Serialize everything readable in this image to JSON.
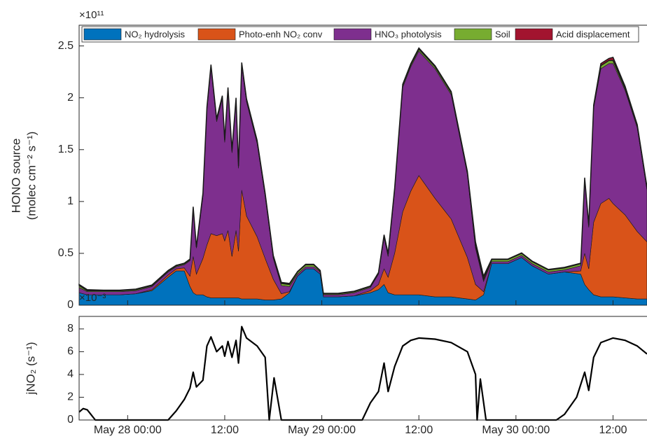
{
  "chart_data": [
    {
      "type": "area",
      "stacked": true,
      "legend": "top",
      "y_label": [
        "HONO source",
        "(molec cm⁻² s⁻¹)"
      ],
      "y_multiplier": "×10¹¹",
      "x": [
        "May 27 18:00",
        "May 27 19:00",
        "May 27 21:00",
        "May 27 23:00",
        "May 28 01:00",
        "May 28 03:00",
        "May 28 05:00",
        "May 28 06:00",
        "May 28 07:00",
        "May 28 07:42",
        "May 28 08:06",
        "May 28 08:30",
        "May 28 09:18",
        "May 28 09:48",
        "May 28 10:18",
        "May 28 11:00",
        "May 28 11:42",
        "May 28 12:00",
        "May 28 12:24",
        "May 28 12:54",
        "May 28 13:24",
        "May 28 13:42",
        "May 28 14:06",
        "May 28 14:42",
        "May 28 16:00",
        "May 28 17:00",
        "May 28 18:00",
        "May 28 19:00",
        "May 28 20:00",
        "May 28 21:00",
        "May 28 22:00",
        "May 28 23:00",
        "May 28 23:48",
        "May 29 00:12",
        "May 29 02:00",
        "May 29 04:00",
        "May 29 06:00",
        "May 29 07:00",
        "May 29 07:42",
        "May 29 08:12",
        "May 29 09:00",
        "May 29 10:00",
        "May 29 11:00",
        "May 29 12:00",
        "May 29 14:00",
        "May 29 16:00",
        "May 29 18:00",
        "May 29 19:00",
        "May 29 20:00",
        "May 29 21:00",
        "May 29 23:00",
        "May 30 00:42",
        "May 30 02:00",
        "May 30 04:00",
        "May 30 06:00",
        "May 30 08:00",
        "May 30 08:30",
        "May 30 09:00",
        "May 30 09:36",
        "May 30 10:30",
        "May 30 11:30",
        "May 30 12:00",
        "May 30 13:30",
        "May 30 15:00",
        "May 30 16:12"
      ],
      "series": [
        {
          "name": "NO₂ hydrolysis",
          "color": "#0072bd",
          "values": [
            0.12,
            0.1,
            0.1,
            0.1,
            0.11,
            0.14,
            0.27,
            0.33,
            0.33,
            0.18,
            0.12,
            0.1,
            0.1,
            0.08,
            0.07,
            0.07,
            0.07,
            0.07,
            0.07,
            0.07,
            0.07,
            0.07,
            0.06,
            0.06,
            0.06,
            0.05,
            0.05,
            0.06,
            0.12,
            0.28,
            0.35,
            0.35,
            0.3,
            0.08,
            0.08,
            0.09,
            0.12,
            0.15,
            0.2,
            0.12,
            0.1,
            0.1,
            0.1,
            0.1,
            0.08,
            0.08,
            0.06,
            0.05,
            0.1,
            0.4,
            0.4,
            0.46,
            0.38,
            0.3,
            0.32,
            0.3,
            0.2,
            0.15,
            0.1,
            0.08,
            0.08,
            0.08,
            0.07,
            0.06,
            0.06
          ]
        },
        {
          "name": "Photo-enh NO₂ conv",
          "color": "#d95319",
          "values": [
            0,
            0,
            0,
            0,
            0,
            0.01,
            0.02,
            0.02,
            0.03,
            0.1,
            0.35,
            0.2,
            0.35,
            0.5,
            0.62,
            0.6,
            0.62,
            0.55,
            0.65,
            0.4,
            0.65,
            0.45,
            1.05,
            0.8,
            0.6,
            0.4,
            0.2,
            0.05,
            0.01,
            0,
            0,
            0,
            0,
            0,
            0,
            0,
            0.02,
            0.05,
            0.15,
            0.15,
            0.4,
            0.8,
            1.0,
            1.15,
            0.95,
            0.75,
            0.4,
            0.15,
            0.03,
            0,
            0,
            0,
            0,
            0,
            0,
            0.03,
            0.3,
            0.2,
            0.7,
            0.9,
            0.95,
            0.9,
            0.8,
            0.65,
            0.55
          ]
        },
        {
          "name": "HNO₃ photolysis",
          "color": "#7e2f8e",
          "values": [
            0.05,
            0.03,
            0.03,
            0.03,
            0.03,
            0.03,
            0.03,
            0.02,
            0.03,
            0.15,
            0.45,
            0.25,
            0.6,
            1.3,
            1.6,
            1.1,
            1.3,
            0.95,
            1.35,
            1.0,
            1.25,
            0.8,
            1.2,
            1.1,
            0.9,
            0.6,
            0.2,
            0.08,
            0.05,
            0.02,
            0.02,
            0.02,
            0.02,
            0.02,
            0.02,
            0.03,
            0.03,
            0.1,
            0.3,
            0.2,
            0.6,
            1.2,
            1.2,
            1.2,
            1.25,
            1.2,
            0.8,
            0.35,
            0.1,
            0.02,
            0.02,
            0.02,
            0.02,
            0.02,
            0.02,
            0.05,
            0.7,
            0.4,
            1.1,
            1.3,
            1.3,
            1.35,
            1.2,
            1.0,
            0.5
          ]
        },
        {
          "name": "Soil",
          "color": "#77ac30",
          "values": [
            0.02,
            0.01,
            0.01,
            0.01,
            0.01,
            0.01,
            0.01,
            0.01,
            0.01,
            0.01,
            0.02,
            0.01,
            0.02,
            0.02,
            0.02,
            0.02,
            0.02,
            0.02,
            0.02,
            0.02,
            0.02,
            0.02,
            0.02,
            0.02,
            0.02,
            0.02,
            0.02,
            0.02,
            0.02,
            0.02,
            0.02,
            0.02,
            0.01,
            0.01,
            0.01,
            0.01,
            0.01,
            0.01,
            0.02,
            0.02,
            0.02,
            0.02,
            0.02,
            0.02,
            0.02,
            0.02,
            0.02,
            0.02,
            0.02,
            0.02,
            0.02,
            0.02,
            0.02,
            0.02,
            0.02,
            0.02,
            0.02,
            0.02,
            0.02,
            0.03,
            0.03,
            0.03,
            0.02,
            0.02,
            0.02
          ]
        },
        {
          "name": "Acid displacement",
          "color": "#a2142f",
          "values": [
            0.01,
            0.01,
            0.005,
            0.005,
            0.005,
            0.005,
            0.005,
            0.005,
            0.005,
            0.005,
            0.01,
            0.005,
            0.01,
            0.01,
            0.01,
            0.01,
            0.01,
            0.01,
            0.01,
            0.01,
            0.01,
            0.01,
            0.01,
            0.01,
            0.01,
            0.01,
            0.01,
            0.01,
            0.01,
            0.005,
            0.005,
            0.005,
            0.005,
            0.005,
            0.005,
            0.005,
            0.005,
            0.005,
            0.01,
            0.01,
            0.01,
            0.01,
            0.01,
            0.01,
            0.01,
            0.01,
            0.01,
            0.04,
            0.03,
            0.005,
            0.005,
            0.005,
            0.005,
            0.005,
            0.005,
            0.005,
            0.01,
            0.01,
            0.01,
            0.02,
            0.02,
            0.03,
            0.02,
            0.01,
            0.01
          ]
        }
      ],
      "xlim": [
        "May 27 18:00",
        "May 30 16:12"
      ],
      "ylim": [
        0,
        2.7
      ],
      "yticks": [
        0,
        0.5,
        1,
        1.5,
        2,
        2.5
      ]
    },
    {
      "type": "line",
      "y_label": "jNO₂ (s⁻¹)",
      "y_multiplier": "×10⁻³",
      "color": "#000000",
      "x": [
        "May 27 18:00",
        "May 27 18:30",
        "May 27 19:00",
        "May 27 20:00",
        "May 28 05:00",
        "May 28 06:00",
        "May 28 07:00",
        "May 28 07:42",
        "May 28 08:06",
        "May 28 08:30",
        "May 28 09:18",
        "May 28 09:48",
        "May 28 10:18",
        "May 28 11:00",
        "May 28 11:42",
        "May 28 12:00",
        "May 28 12:24",
        "May 28 12:54",
        "May 28 13:24",
        "May 28 13:42",
        "May 28 14:06",
        "May 28 14:42",
        "May 28 16:00",
        "May 28 17:00",
        "May 28 17:30",
        "May 28 18:06",
        "May 28 19:00",
        "May 29 05:00",
        "May 29 06:00",
        "May 29 07:00",
        "May 29 07:42",
        "May 29 08:12",
        "May 29 09:00",
        "May 29 10:00",
        "May 29 11:00",
        "May 29 12:00",
        "May 29 14:00",
        "May 29 16:00",
        "May 29 18:00",
        "May 29 19:00",
        "May 29 19:12",
        "May 29 19:36",
        "May 29 20:18",
        "May 30 05:00",
        "May 30 06:00",
        "May 30 07:30",
        "May 30 08:30",
        "May 30 09:00",
        "May 30 09:36",
        "May 30 10:30",
        "May 30 12:00",
        "May 30 13:30",
        "May 30 15:00",
        "May 30 16:12"
      ],
      "values": [
        0.7,
        1.0,
        0.9,
        0,
        0,
        0.8,
        1.8,
        2.8,
        4.2,
        2.9,
        3.5,
        6.5,
        7.3,
        6.0,
        6.5,
        5.6,
        6.9,
        5.5,
        7.0,
        5.0,
        8.2,
        7.2,
        6.5,
        5.5,
        0,
        3.7,
        0,
        0,
        1.5,
        2.5,
        5.0,
        2.5,
        4.7,
        6.5,
        7.0,
        7.2,
        7.1,
        6.8,
        6.0,
        4.0,
        0,
        3.6,
        0,
        0,
        0.5,
        2.0,
        4.2,
        2.6,
        5.5,
        6.8,
        7.2,
        7.0,
        6.5,
        5.8
      ],
      "xlim": [
        "May 27 18:00",
        "May 30 16:12"
      ],
      "xticks": [
        {
          "value": "May 28 00:00",
          "label": "May 28 00:00"
        },
        {
          "value": "May 28 12:00",
          "label": "12:00"
        },
        {
          "value": "May 29 00:00",
          "label": "May 29 00:00"
        },
        {
          "value": "May 29 12:00",
          "label": "12:00"
        },
        {
          "value": "May 30 00:00",
          "label": "May 30 00:00"
        },
        {
          "value": "May 30 12:00",
          "label": "12:00"
        }
      ],
      "ylim": [
        0,
        9.1
      ],
      "yticks": [
        0,
        2,
        4,
        6,
        8
      ]
    }
  ]
}
